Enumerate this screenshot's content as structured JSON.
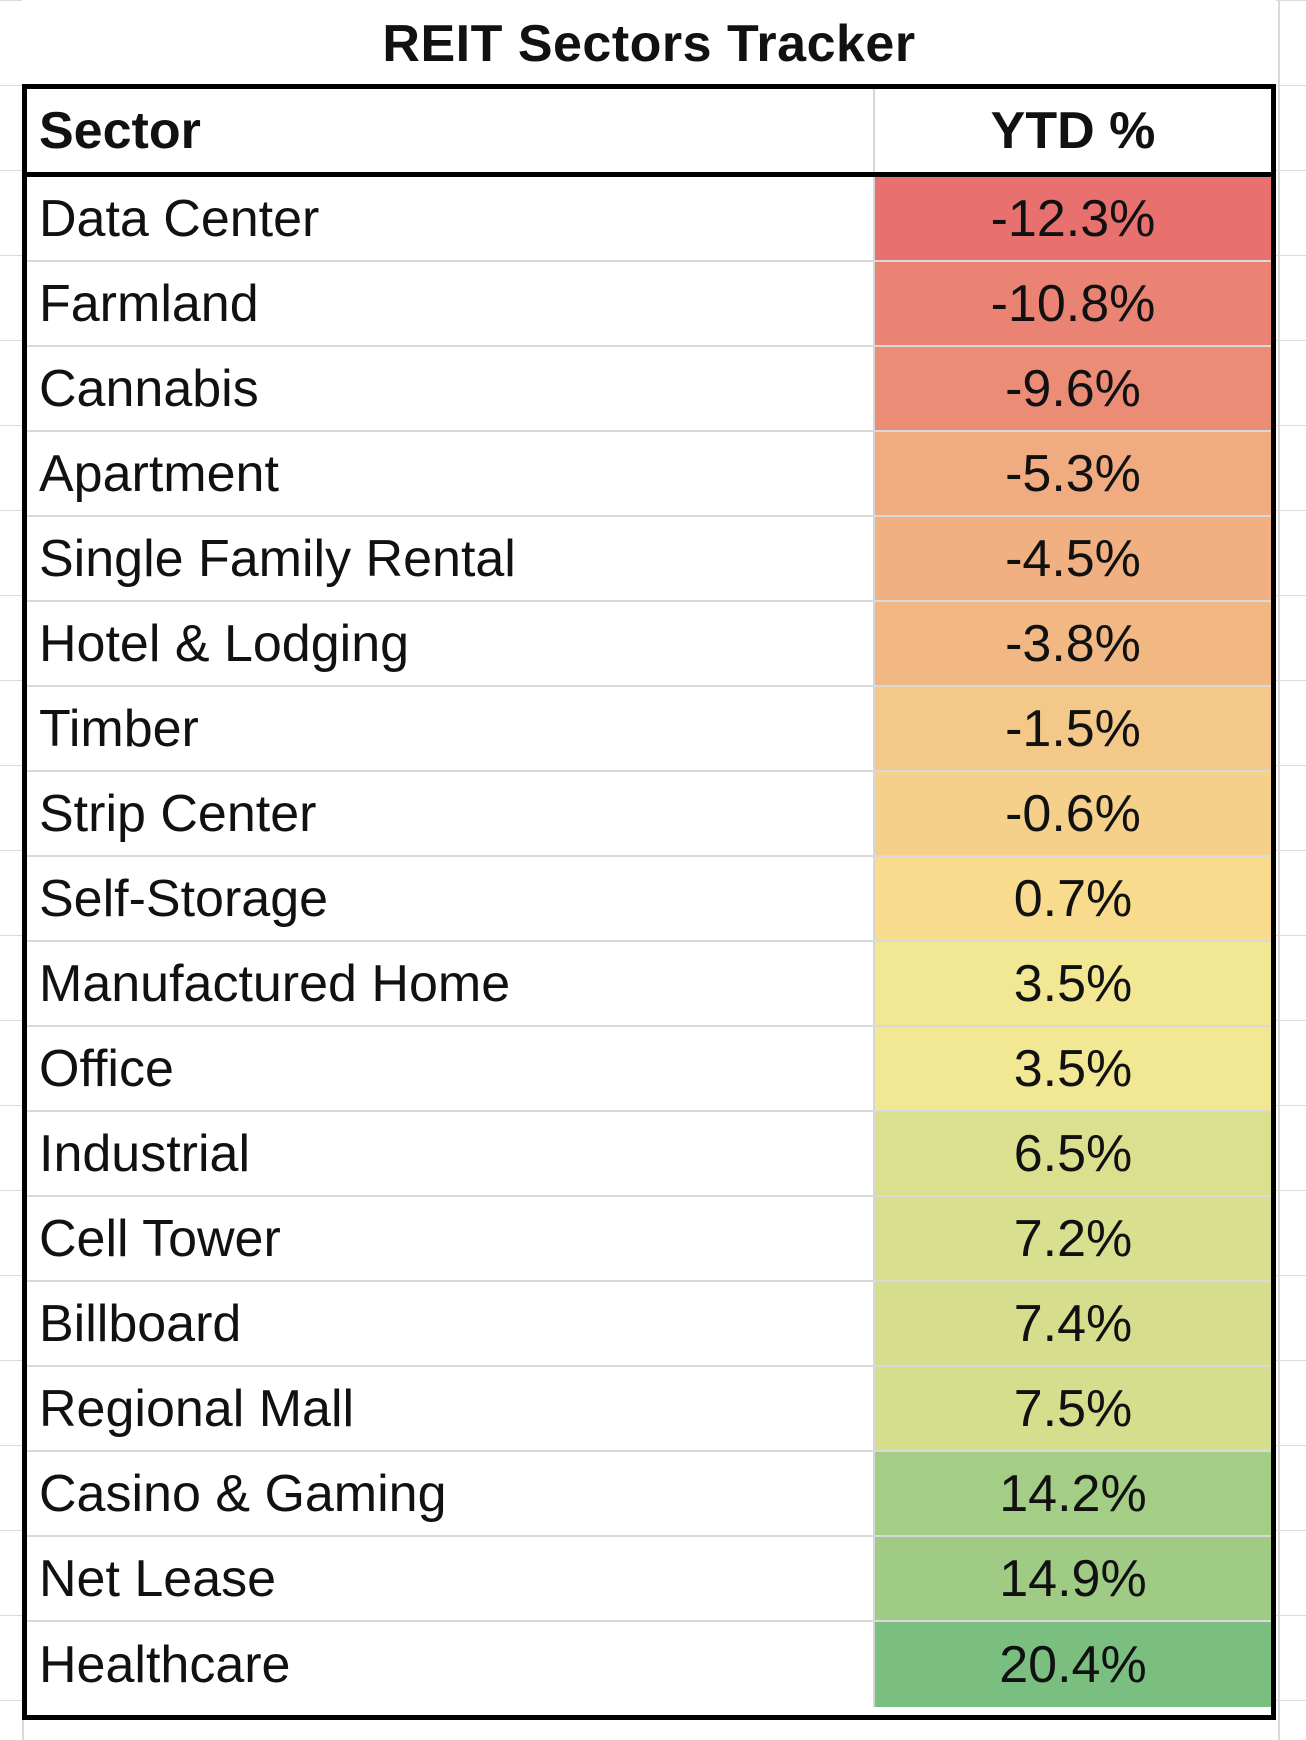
{
  "title": "REIT Sectors Tracker",
  "table": {
    "columns": [
      "Sector",
      "YTD %"
    ],
    "rows": [
      {
        "sector": "Data Center",
        "ytd": "-12.3%",
        "value": -12.3,
        "color": "#E8716F"
      },
      {
        "sector": "Farmland",
        "ytd": "-10.8%",
        "value": -10.8,
        "color": "#EA8373"
      },
      {
        "sector": "Cannabis",
        "ytd": "-9.6%",
        "value": -9.6,
        "color": "#EB8C76"
      },
      {
        "sector": "Apartment",
        "ytd": "-5.3%",
        "value": -5.3,
        "color": "#F0AC80"
      },
      {
        "sector": "Single Family Rental",
        "ytd": "-4.5%",
        "value": -4.5,
        "color": "#F0B081"
      },
      {
        "sector": "Hotel & Lodging",
        "ytd": "-3.8%",
        "value": -3.8,
        "color": "#F1B883"
      },
      {
        "sector": "Timber",
        "ytd": "-1.5%",
        "value": -1.5,
        "color": "#F3C888"
      },
      {
        "sector": "Strip Center",
        "ytd": "-0.6%",
        "value": -0.6,
        "color": "#F4D08A"
      },
      {
        "sector": "Self-Storage",
        "ytd": "0.7%",
        "value": 0.7,
        "color": "#F8DB8D"
      },
      {
        "sector": "Manufactured Home",
        "ytd": "3.5%",
        "value": 3.5,
        "color": "#F2E893"
      },
      {
        "sector": "Office",
        "ytd": "3.5%",
        "value": 3.5,
        "color": "#F2E893"
      },
      {
        "sector": "Industrial",
        "ytd": "6.5%",
        "value": 6.5,
        "color": "#DBE08F"
      },
      {
        "sector": "Cell Tower",
        "ytd": "7.2%",
        "value": 7.2,
        "color": "#D8DF8E"
      },
      {
        "sector": "Billboard",
        "ytd": "7.4%",
        "value": 7.4,
        "color": "#D6DE8E"
      },
      {
        "sector": "Regional Mall",
        "ytd": "7.5%",
        "value": 7.5,
        "color": "#D5DE8D"
      },
      {
        "sector": "Casino & Gaming",
        "ytd": "14.2%",
        "value": 14.2,
        "color": "#A4CD86"
      },
      {
        "sector": "Net Lease",
        "ytd": "14.9%",
        "value": 14.9,
        "color": "#A0CB85"
      },
      {
        "sector": "Healthcare",
        "ytd": "20.4%",
        "value": 20.4,
        "color": "#7BBF80"
      }
    ]
  }
}
